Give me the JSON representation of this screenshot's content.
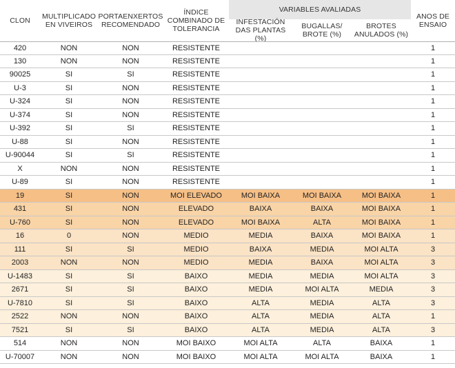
{
  "header": {
    "clon": "CLON",
    "multiplicado": [
      "MULTIPLICADO",
      "EN VIVEIROS"
    ],
    "portaenxertos": [
      "PORTAENXERTOS",
      "RECOMENDADO"
    ],
    "indice": [
      "ÍNDICE",
      "COMBINADO DE",
      "TOLERANCIA"
    ],
    "variables": "VARIABLES AVALIADAS",
    "infestacion": [
      "INFESTACIÓN",
      "DAS PLANTAS (%)"
    ],
    "bugallas": [
      "BUGALLAS/",
      "BROTE (%)"
    ],
    "brotes": [
      "BROTES",
      "ANULADOS (%)"
    ],
    "anos": [
      "ANOS DE",
      "ENSAIO"
    ]
  },
  "colors": {
    "row_very_high": "#f6bf86",
    "row_high": "#f9d4a7",
    "row_medium": "#fbe3c5",
    "row_low": "#fdf0dc",
    "row_white": "#ffffff"
  },
  "rows": [
    {
      "clon": "420",
      "multiplicado": "NON",
      "portaenxertos": "NON",
      "indice": "RESISTENTE",
      "infestacion": "",
      "bugallas": "",
      "brotes": "",
      "anos": "1",
      "tone": "row_white"
    },
    {
      "clon": "130",
      "multiplicado": "NON",
      "portaenxertos": "NON",
      "indice": "RESISTENTE",
      "infestacion": "",
      "bugallas": "",
      "brotes": "",
      "anos": "1",
      "tone": "row_white"
    },
    {
      "clon": "90025",
      "multiplicado": "SI",
      "portaenxertos": "SI",
      "indice": "RESISTENTE",
      "infestacion": "",
      "bugallas": "",
      "brotes": "",
      "anos": "1",
      "tone": "row_white"
    },
    {
      "clon": "U-3",
      "multiplicado": "SI",
      "portaenxertos": "NON",
      "indice": "RESISTENTE",
      "infestacion": "",
      "bugallas": "",
      "brotes": "",
      "anos": "1",
      "tone": "row_white"
    },
    {
      "clon": "U-324",
      "multiplicado": "SI",
      "portaenxertos": "NON",
      "indice": "RESISTENTE",
      "infestacion": "",
      "bugallas": "",
      "brotes": "",
      "anos": "1",
      "tone": "row_white"
    },
    {
      "clon": "U-374",
      "multiplicado": "SI",
      "portaenxertos": "NON",
      "indice": "RESISTENTE",
      "infestacion": "",
      "bugallas": "",
      "brotes": "",
      "anos": "1",
      "tone": "row_white"
    },
    {
      "clon": "U-392",
      "multiplicado": "SI",
      "portaenxertos": "SI",
      "indice": "RESISTENTE",
      "infestacion": "",
      "bugallas": "",
      "brotes": "",
      "anos": "1",
      "tone": "row_white"
    },
    {
      "clon": "U-88",
      "multiplicado": "SI",
      "portaenxertos": "NON",
      "indice": "RESISTENTE",
      "infestacion": "",
      "bugallas": "",
      "brotes": "",
      "anos": "1",
      "tone": "row_white"
    },
    {
      "clon": "U-90044",
      "multiplicado": "SI",
      "portaenxertos": "SI",
      "indice": "RESISTENTE",
      "infestacion": "",
      "bugallas": "",
      "brotes": "",
      "anos": "1",
      "tone": "row_white"
    },
    {
      "clon": "X",
      "multiplicado": "NON",
      "portaenxertos": "NON",
      "indice": "RESISTENTE",
      "infestacion": "",
      "bugallas": "",
      "brotes": "",
      "anos": "1",
      "tone": "row_white"
    },
    {
      "clon": "U-89",
      "multiplicado": "SI",
      "portaenxertos": "NON",
      "indice": "RESISTENTE",
      "infestacion": "",
      "bugallas": "",
      "brotes": "",
      "anos": "1",
      "tone": "row_white"
    },
    {
      "clon": "19",
      "multiplicado": "SI",
      "portaenxertos": "NON",
      "indice": "MOI ELEVADO",
      "infestacion": "MOI BAIXA",
      "bugallas": "MOI BAIXA",
      "brotes": "MOI BAIXA",
      "anos": "1",
      "tone": "row_very_high"
    },
    {
      "clon": "431",
      "multiplicado": "SI",
      "portaenxertos": "NON",
      "indice": "ELEVADO",
      "infestacion": "BAIXA",
      "bugallas": "BAIXA",
      "brotes": "MOI BAIXA",
      "anos": "1",
      "tone": "row_high"
    },
    {
      "clon": "U-760",
      "multiplicado": "SI",
      "portaenxertos": "NON",
      "indice": "ELEVADO",
      "infestacion": "MOI BAIXA",
      "bugallas": "ALTA",
      "brotes": "MOI BAIXA",
      "anos": "1",
      "tone": "row_high"
    },
    {
      "clon": "16",
      "multiplicado": "0",
      "portaenxertos": "NON",
      "indice": "MEDIO",
      "infestacion": "MEDIA",
      "bugallas": "BAIXA",
      "brotes": "MOI BAIXA",
      "anos": "1",
      "tone": "row_medium"
    },
    {
      "clon": "111",
      "multiplicado": "SI",
      "portaenxertos": "SI",
      "indice": "MEDIO",
      "infestacion": "BAIXA",
      "bugallas": "MEDIA",
      "brotes": "MOI ALTA",
      "anos": "3",
      "tone": "row_medium"
    },
    {
      "clon": "2003",
      "multiplicado": "NON",
      "portaenxertos": "NON",
      "indice": "MEDIO",
      "infestacion": "MEDIA",
      "bugallas": "BAIXA",
      "brotes": "MOI ALTA",
      "anos": "3",
      "tone": "row_medium"
    },
    {
      "clon": "U-1483",
      "multiplicado": "SI",
      "portaenxertos": "SI",
      "indice": "BAIXO",
      "infestacion": "MEDIA",
      "bugallas": "MEDIA",
      "brotes": "MOI ALTA",
      "anos": "3",
      "tone": "row_low"
    },
    {
      "clon": "2671",
      "multiplicado": "SI",
      "portaenxertos": "SI",
      "indice": "BAIXO",
      "infestacion": "MEDIA",
      "bugallas": "MOI ALTA",
      "brotes": "MEDIA",
      "anos": "3",
      "tone": "row_low"
    },
    {
      "clon": "U-7810",
      "multiplicado": "SI",
      "portaenxertos": "SI",
      "indice": "BAIXO",
      "infestacion": "ALTA",
      "bugallas": "MEDIA",
      "brotes": "ALTA",
      "anos": "3",
      "tone": "row_low"
    },
    {
      "clon": "2522",
      "multiplicado": "NON",
      "portaenxertos": "NON",
      "indice": "BAIXO",
      "infestacion": "ALTA",
      "bugallas": "MEDIA",
      "brotes": "ALTA",
      "anos": "1",
      "tone": "row_low"
    },
    {
      "clon": "7521",
      "multiplicado": "SI",
      "portaenxertos": "SI",
      "indice": "BAIXO",
      "infestacion": "ALTA",
      "bugallas": "MEDIA",
      "brotes": "ALTA",
      "anos": "3",
      "tone": "row_low"
    },
    {
      "clon": "514",
      "multiplicado": "NON",
      "portaenxertos": "NON",
      "indice": "MOI BAIXO",
      "infestacion": "MOI ALTA",
      "bugallas": "ALTA",
      "brotes": "BAIXA",
      "anos": "1",
      "tone": "row_white"
    },
    {
      "clon": "U-70007",
      "multiplicado": "NON",
      "portaenxertos": "NON",
      "indice": "MOI BAIXO",
      "infestacion": "MOI ALTA",
      "bugallas": "MOI ALTA",
      "brotes": "BAIXA",
      "anos": "1",
      "tone": "row_white"
    }
  ]
}
